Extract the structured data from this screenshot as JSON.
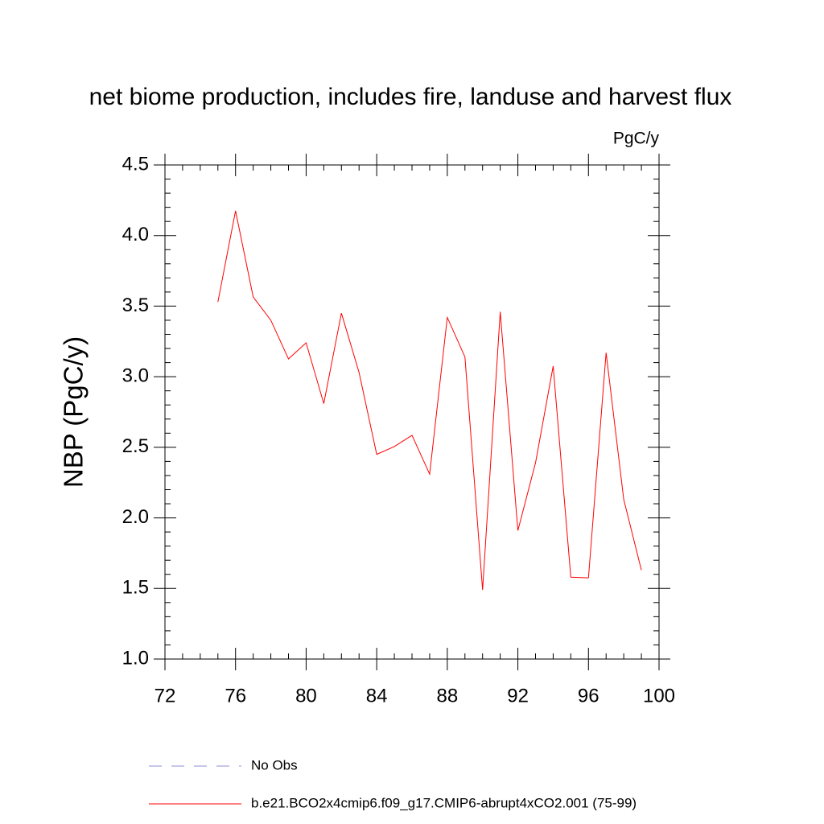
{
  "chart_data": {
    "type": "line",
    "title": "net biome production, includes fire, landuse and harvest flux",
    "units_label": "PgC/y",
    "y_label": "NBP  (PgC/y)",
    "x": [
      75,
      76,
      77,
      78,
      79,
      80,
      81,
      82,
      83,
      84,
      85,
      86,
      87,
      88,
      89,
      90,
      91,
      92,
      93,
      94,
      95,
      96,
      97,
      98,
      99
    ],
    "series": [
      {
        "name": "No Obs",
        "color": "#8c8cd8",
        "line_style": "dashed",
        "values": [
          null,
          null,
          null,
          null,
          null,
          null,
          null,
          null,
          null,
          null,
          null,
          null,
          null,
          null,
          null,
          null,
          null,
          null,
          null,
          null,
          null,
          null,
          null,
          null,
          null
        ]
      },
      {
        "name": "b.e21.BCO2x4cmip6.f09_g17.CMIP6-abrupt4xCO2.001 (75-99)",
        "color": "#ff0000",
        "line_style": "solid",
        "values": [
          3.53,
          4.175,
          3.565,
          3.4,
          3.126,
          3.24,
          2.81,
          3.45,
          3.03,
          2.45,
          2.505,
          2.585,
          2.31,
          3.42,
          3.14,
          1.49,
          3.46,
          1.91,
          2.39,
          3.075,
          1.58,
          1.575,
          3.17,
          2.13,
          1.63
        ]
      }
    ],
    "xlim": [
      72,
      100
    ],
    "xticks": [
      72,
      76,
      80,
      84,
      88,
      92,
      96,
      100
    ],
    "ylim": [
      1.0,
      4.5
    ],
    "yticks": [
      {
        "value": 1.0,
        "label": "1.0"
      },
      {
        "value": 1.5,
        "label": "1.5"
      },
      {
        "value": 2.0,
        "label": "2.0"
      },
      {
        "value": 2.5,
        "label": "2.5"
      },
      {
        "value": 3.0,
        "label": "3.0"
      },
      {
        "value": 3.5,
        "label": "3.5"
      },
      {
        "value": 4.0,
        "label": "4.0"
      },
      {
        "value": 4.5,
        "label": "4.5"
      }
    ],
    "grid": false
  }
}
